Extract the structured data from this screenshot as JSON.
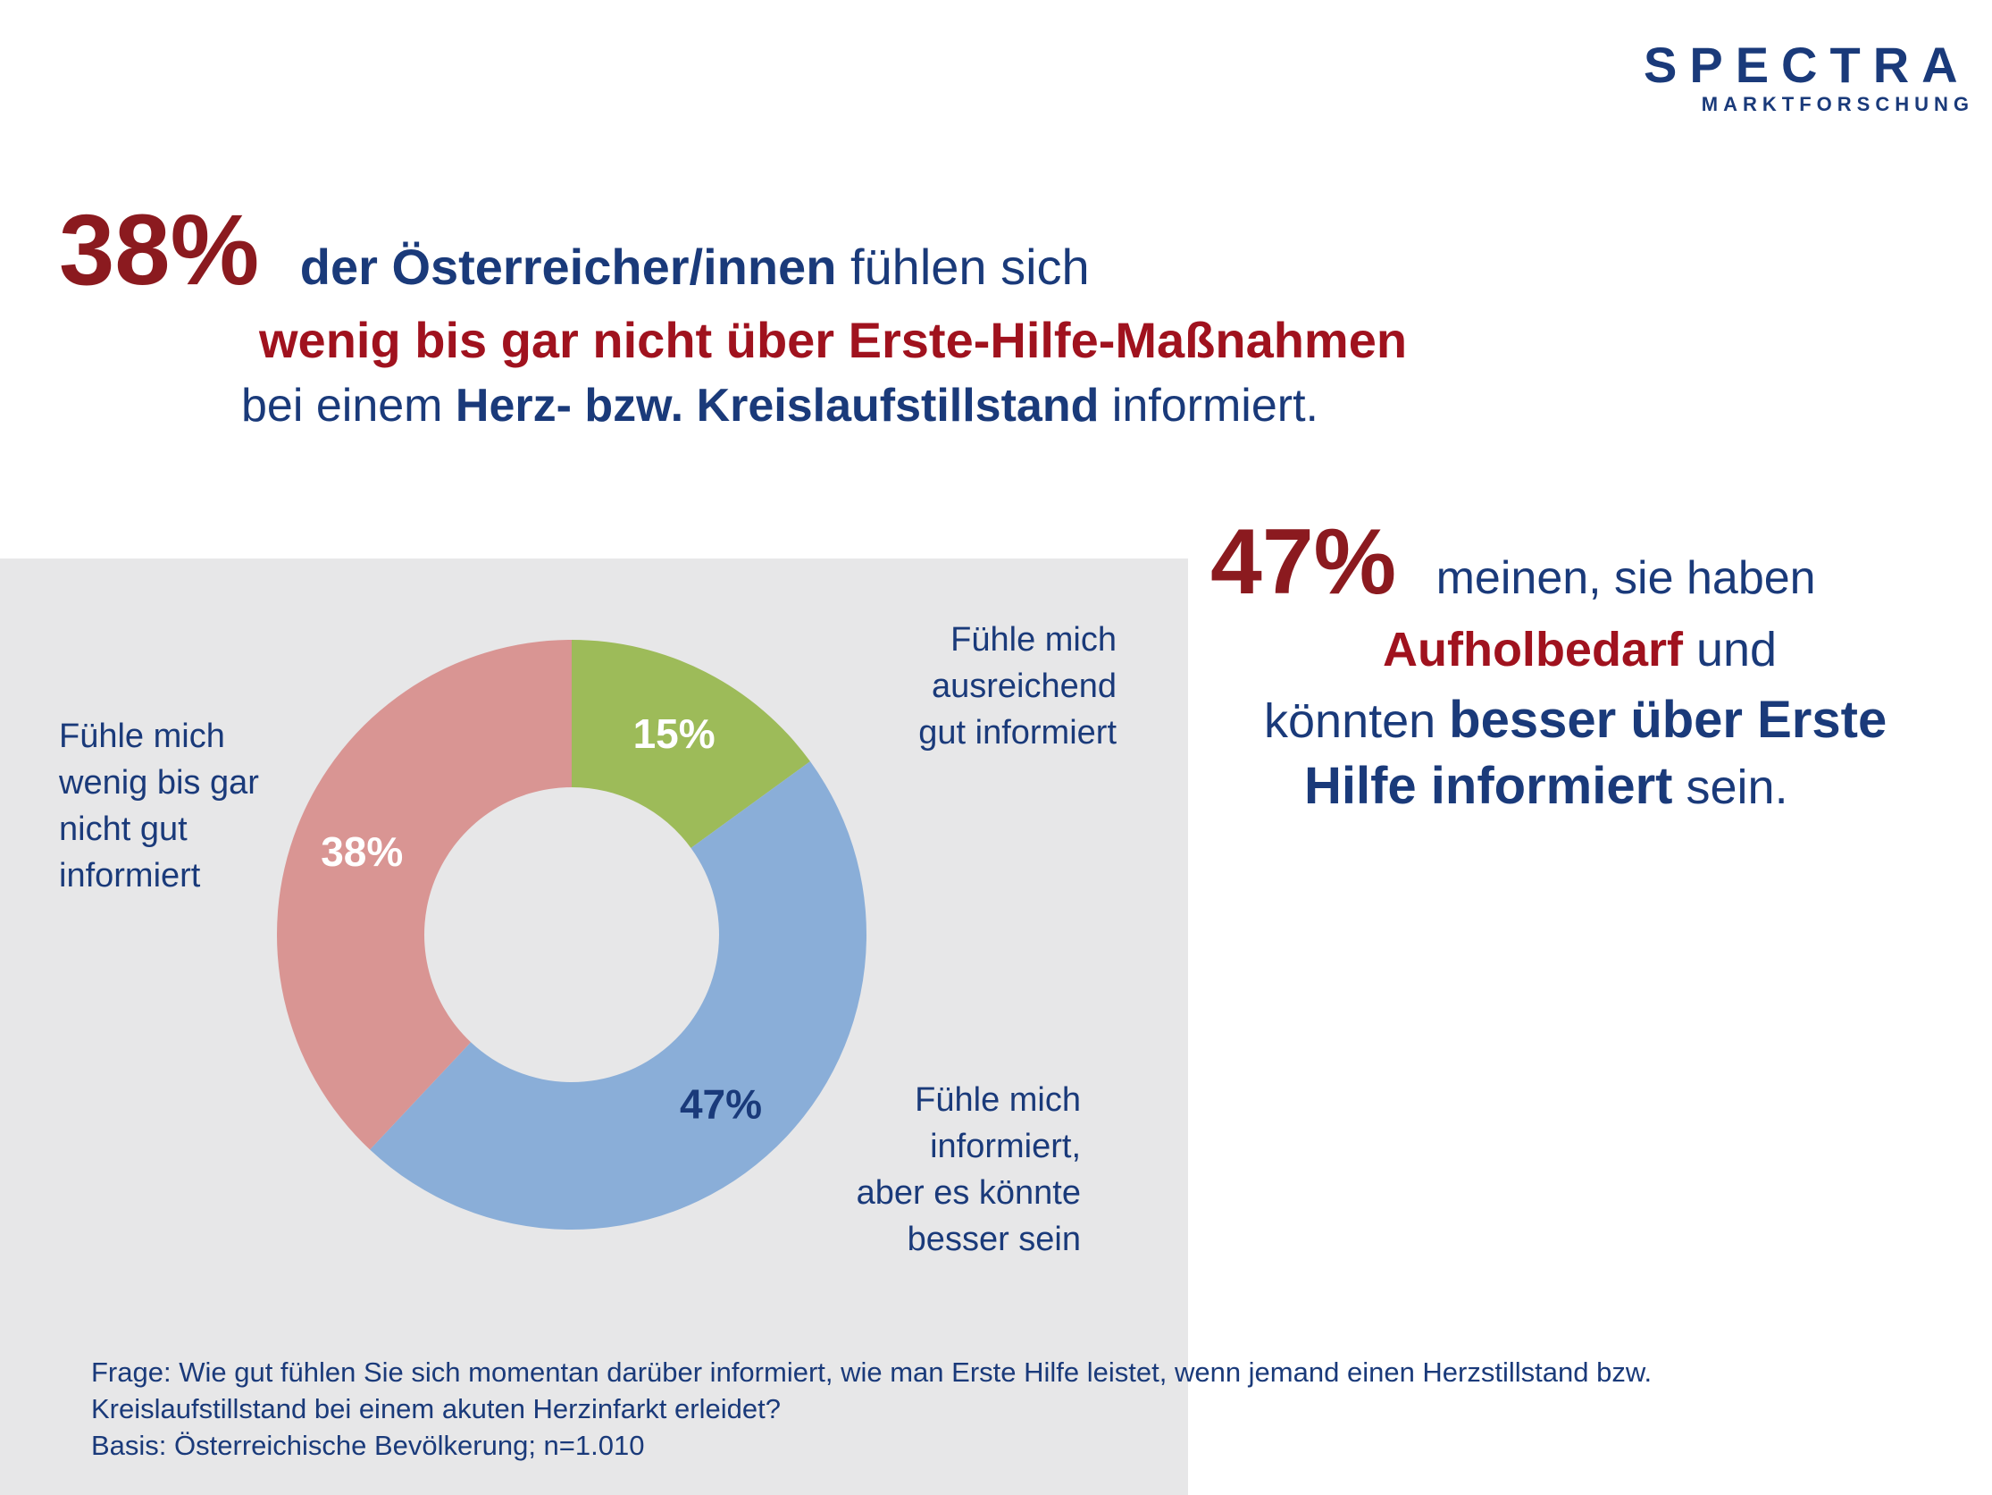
{
  "logo": {
    "name": "SPECTRA",
    "subtitle": "MARKTFORSCHUNG",
    "color": "#1a3a7a",
    "accent": "#d0202e"
  },
  "headline": {
    "pct": "38%",
    "line1_bold": "der Österreicher/innen",
    "line1_rest": " fühlen sich",
    "line2": "wenig bis gar nicht über Erste-Hilfe-Maßnahmen",
    "line3_start": "bei einem ",
    "line3_bold": "Herz- bzw. Kreislaufstillstand",
    "line3_end": " informiert."
  },
  "side": {
    "pct": "47%",
    "l1": "meinen, sie haben",
    "l2_bold": "Aufholbedarf",
    "l2_rest": " und",
    "l3_start": "könnten ",
    "l3_bold": "besser über Erste",
    "l4_bold": "Hilfe informiert",
    "l4_rest": " sein."
  },
  "labels": {
    "left": [
      "Fühle mich",
      "wenig bis gar",
      "nicht gut",
      "informiert"
    ],
    "topright": [
      "Fühle mich",
      "ausreichend",
      "gut informiert"
    ],
    "bottomright": [
      "Fühle mich",
      "informiert,",
      "aber es könnte",
      "besser sein"
    ]
  },
  "footnote": {
    "l1": "Frage: Wie gut fühlen Sie sich momentan darüber informiert, wie man Erste Hilfe leistet, wenn jemand einen Herzstillstand bzw.",
    "l2": "Kreislaufstillstand bei einem akuten Herzinfarkt erleidet?",
    "l3": "Basis: Österreichische Bevölkerung; n=1.010"
  },
  "chart_data": {
    "type": "pie",
    "donut": true,
    "categories": [
      "Fühle mich ausreichend gut informiert",
      "Fühle mich informiert, aber es könnte besser sein",
      "Fühle mich wenig bis gar nicht gut informiert"
    ],
    "values": [
      15,
      47,
      38
    ],
    "value_labels": [
      "15%",
      "47%",
      "38%"
    ],
    "colors": [
      "#9dbb59",
      "#8aaed8",
      "#d99593"
    ],
    "label_colors": [
      "#ffffff",
      "#1a3a7a",
      "#ffffff"
    ],
    "start_angle_deg": 0,
    "direction": "clockwise"
  }
}
